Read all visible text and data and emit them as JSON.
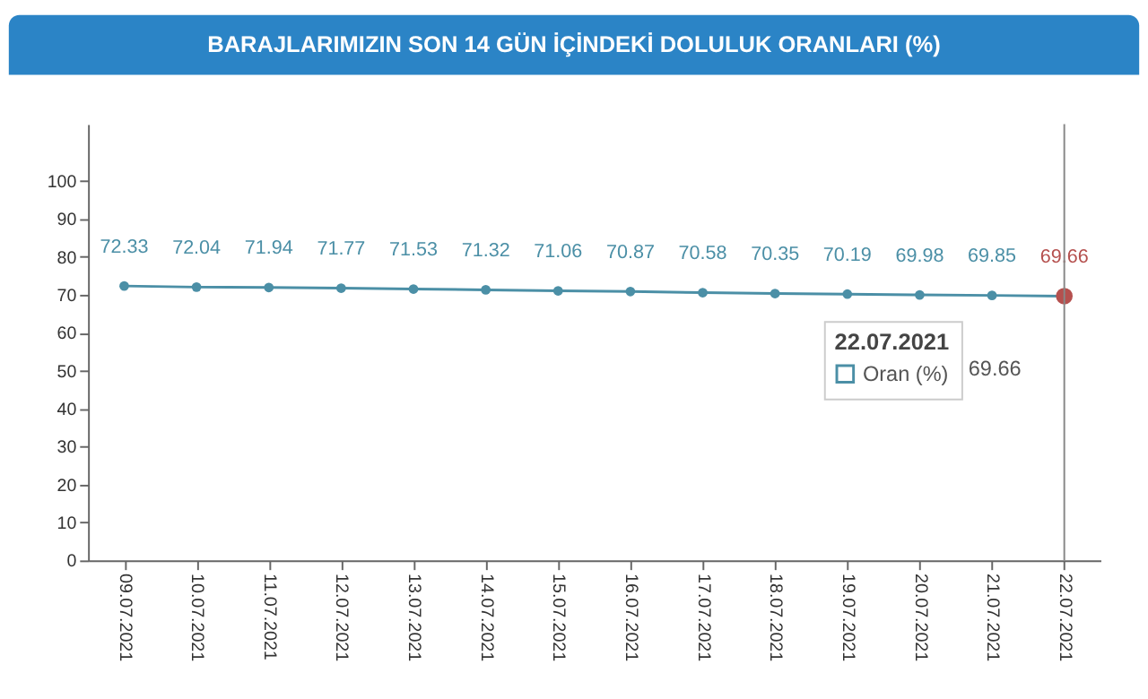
{
  "chart_data": {
    "type": "line",
    "title": "BARAJLARIMIZIN SON 14 GÜN İÇİNDEKİ DOLULUK ORANLARI (%)",
    "categories": [
      "09.07.2021",
      "10.07.2021",
      "11.07.2021",
      "12.07.2021",
      "13.07.2021",
      "14.07.2021",
      "15.07.2021",
      "16.07.2021",
      "17.07.2021",
      "18.07.2021",
      "19.07.2021",
      "20.07.2021",
      "21.07.2021",
      "22.07.2021"
    ],
    "series": [
      {
        "name": "Oran (%)",
        "color": "#4b8fa6",
        "colors": [
          "#4b8fa6",
          "#4b8fa6",
          "#4b8fa6",
          "#4b8fa6",
          "#4b8fa6",
          "#4b8fa6",
          "#4b8fa6",
          "#4b8fa6",
          "#4b8fa6",
          "#4b8fa6",
          "#4b8fa6",
          "#4b8fa6",
          "#4b8fa6",
          "#b5504e"
        ],
        "values": [
          72.33,
          72.04,
          71.94,
          71.77,
          71.53,
          71.32,
          71.06,
          70.87,
          70.58,
          70.35,
          70.19,
          69.98,
          69.85,
          69.66
        ]
      }
    ],
    "ylim": [
      0,
      115
    ],
    "yticks": [
      0,
      10,
      20,
      30,
      40,
      50,
      60,
      70,
      80,
      90,
      100
    ],
    "grid": false,
    "marker": "circle",
    "line_style": "solid",
    "data_labels": true,
    "legend_title": "22.07.2021",
    "legend": "right",
    "annotations": [
      "69.66"
    ],
    "ref_lines": [
      {
        "axis": "x",
        "value": "22.07.2021",
        "color": "#888888"
      }
    ]
  }
}
